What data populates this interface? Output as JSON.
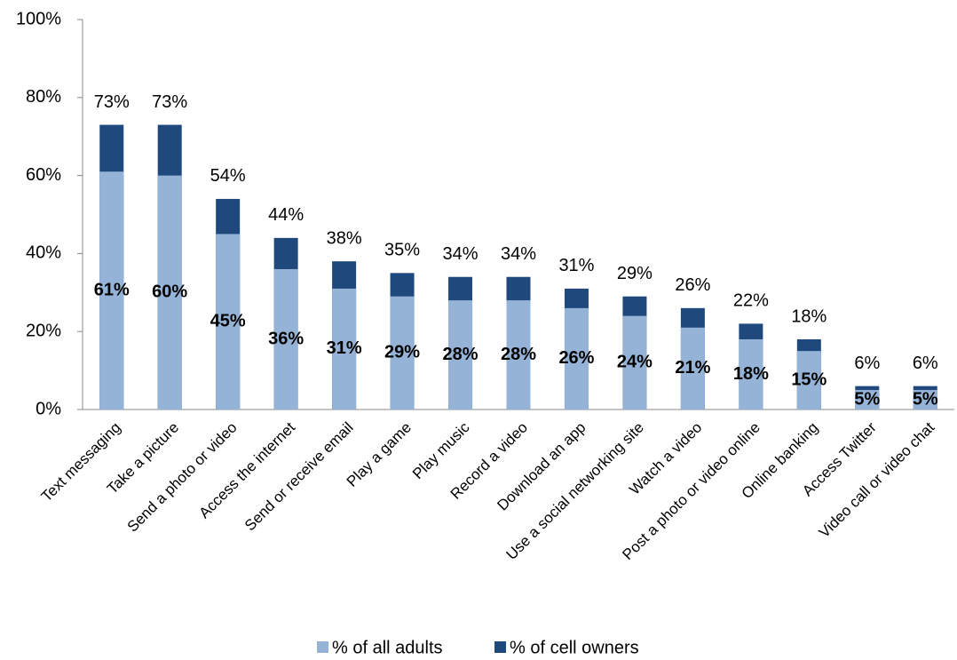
{
  "chart_data": {
    "type": "bar",
    "overlap": true,
    "categories": [
      "Text messaging",
      "Take a picture",
      "Send a photo or video",
      "Access the internet",
      "Send or receive email",
      "Play a game",
      "Play music",
      "Record a video",
      "Download an app",
      "Use a social networking site",
      "Watch a video",
      "Post a photo or video online",
      "Online banking",
      "Access Twitter",
      "Video call or video chat"
    ],
    "series": [
      {
        "name": "% of all adults",
        "color": "#95b3d7",
        "values": [
          61,
          60,
          45,
          36,
          31,
          29,
          28,
          28,
          26,
          24,
          21,
          18,
          15,
          5,
          5
        ],
        "value_labels": [
          "61%",
          "60%",
          "45%",
          "36%",
          "31%",
          "29%",
          "28%",
          "28%",
          "26%",
          "24%",
          "21%",
          "18%",
          "15%",
          "5%",
          "5%"
        ]
      },
      {
        "name": "% of cell owners",
        "color": "#1f497d",
        "values": [
          73,
          73,
          54,
          44,
          38,
          35,
          34,
          34,
          31,
          29,
          26,
          22,
          18,
          6,
          6
        ],
        "value_labels": [
          "73%",
          "73%",
          "54%",
          "44%",
          "38%",
          "35%",
          "34%",
          "34%",
          "31%",
          "29%",
          "26%",
          "22%",
          "18%",
          "6%",
          "6%"
        ]
      }
    ],
    "ylim": [
      0,
      100
    ],
    "yticks": [
      {
        "value": 0,
        "label": "0%"
      },
      {
        "value": 20,
        "label": "20%"
      },
      {
        "value": 40,
        "label": "40%"
      },
      {
        "value": 60,
        "label": "60%"
      },
      {
        "value": 80,
        "label": "80%"
      },
      {
        "value": 100,
        "label": "100%"
      }
    ]
  }
}
